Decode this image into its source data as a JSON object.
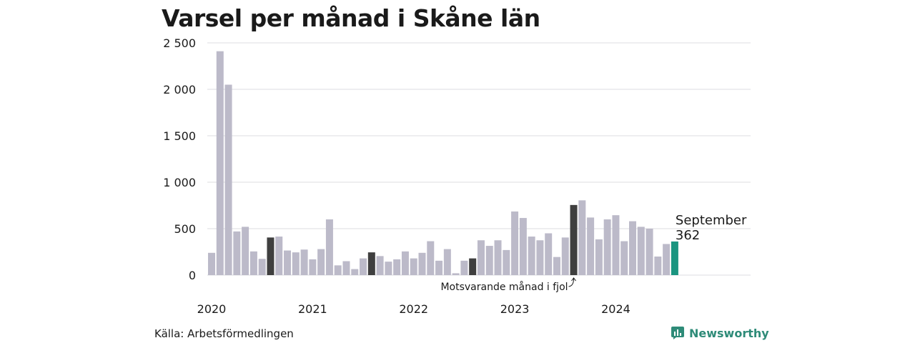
{
  "chart_data": {
    "type": "bar",
    "title": "Varsel per månad i Skåne län",
    "ylim": [
      0,
      2500
    ],
    "yticks": [
      0,
      500,
      1000,
      1500,
      2000,
      2500
    ],
    "ytick_labels": [
      "0",
      "500",
      "1 000",
      "1 500",
      "2 000",
      "2 500"
    ],
    "year_labels": [
      "2020",
      "2021",
      "2022",
      "2023",
      "2024"
    ],
    "values": [
      240,
      2410,
      2050,
      470,
      520,
      255,
      175,
      405,
      415,
      265,
      245,
      275,
      170,
      280,
      600,
      105,
      150,
      65,
      180,
      245,
      205,
      145,
      170,
      255,
      180,
      240,
      365,
      155,
      280,
      20,
      155,
      180,
      375,
      315,
      375,
      270,
      685,
      615,
      415,
      375,
      450,
      195,
      405,
      755,
      805,
      620,
      385,
      600,
      645,
      365,
      580,
      520,
      500,
      200,
      335,
      362
    ],
    "highlight_indices": [
      7,
      19,
      31,
      43
    ],
    "current_index": 55,
    "colors": {
      "default": "#bcbac9",
      "highlight": "#3f3f3f",
      "current": "#1a9580",
      "grid": "#dcdce2"
    },
    "annotation": "Motsvarande månad i fjol",
    "callout": {
      "month": "September",
      "value": "362"
    },
    "grid": true
  },
  "footer": {
    "source": "Källa: Arbetsförmedlingen",
    "brand": "Newsworthy"
  }
}
